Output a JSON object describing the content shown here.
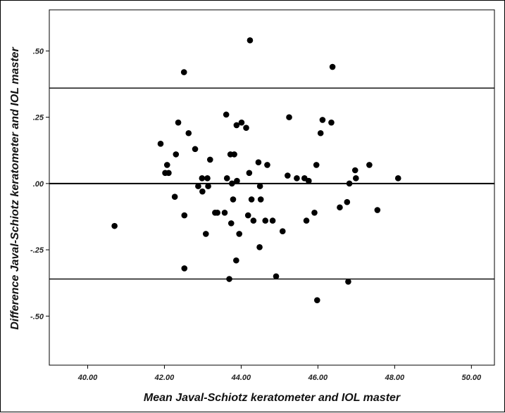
{
  "chart_data": {
    "type": "scatter",
    "title": "",
    "xlabel": "Mean Javal-Schiotz keratometer and IOL master",
    "ylabel": "Difference Javal-Schiotz keratometer and IOL master",
    "xlim": [
      39.0,
      50.6
    ],
    "ylim": [
      -0.685,
      0.655
    ],
    "x_ticks": [
      {
        "value": 40,
        "label": "40.00"
      },
      {
        "value": 42,
        "label": "42.00"
      },
      {
        "value": 44,
        "label": "44.00"
      },
      {
        "value": 46,
        "label": "46.00"
      },
      {
        "value": 48,
        "label": "48.00"
      },
      {
        "value": 50,
        "label": "50.00"
      }
    ],
    "y_ticks": [
      {
        "value": 0.5,
        "label": ".50"
      },
      {
        "value": 0.25,
        "label": ".25"
      },
      {
        "value": 0.0,
        "label": ".00"
      },
      {
        "value": -0.25,
        "label": "-.25"
      },
      {
        "value": -0.5,
        "label": "-.50"
      }
    ],
    "reference_lines": [
      {
        "kind": "upper-limit",
        "y": 0.36
      },
      {
        "kind": "mean-difference",
        "y": 0.0
      },
      {
        "kind": "lower-limit",
        "y": -0.36
      }
    ],
    "grid": false,
    "legend": "none",
    "colors": {
      "points": "#000000",
      "lines": "#000000",
      "frame": "#000000"
    },
    "points": [
      [
        40.7,
        -0.16
      ],
      [
        41.9,
        0.15
      ],
      [
        42.02,
        0.04
      ],
      [
        42.07,
        0.07
      ],
      [
        42.11,
        0.04
      ],
      [
        42.27,
        -0.05
      ],
      [
        42.3,
        0.11
      ],
      [
        42.36,
        0.23
      ],
      [
        42.52,
        -0.12
      ],
      [
        42.51,
        0.42
      ],
      [
        42.52,
        -0.32
      ],
      [
        42.63,
        0.19
      ],
      [
        42.8,
        0.13
      ],
      [
        42.88,
        -0.01
      ],
      [
        42.98,
        0.02
      ],
      [
        42.99,
        -0.03
      ],
      [
        43.08,
        -0.19
      ],
      [
        43.12,
        0.02
      ],
      [
        43.14,
        -0.01
      ],
      [
        43.19,
        0.09
      ],
      [
        43.32,
        -0.11
      ],
      [
        43.38,
        -0.11
      ],
      [
        43.57,
        -0.11
      ],
      [
        43.61,
        0.26
      ],
      [
        43.63,
        0.02
      ],
      [
        43.69,
        -0.36
      ],
      [
        43.72,
        0.11
      ],
      [
        43.74,
        -0.15
      ],
      [
        43.76,
        0.0
      ],
      [
        43.79,
        -0.06
      ],
      [
        43.82,
        0.11
      ],
      [
        43.88,
        0.22
      ],
      [
        43.87,
        -0.29
      ],
      [
        43.89,
        0.01
      ],
      [
        43.95,
        -0.19
      ],
      [
        44.01,
        0.23
      ],
      [
        44.13,
        0.21
      ],
      [
        44.18,
        -0.12
      ],
      [
        44.21,
        0.04
      ],
      [
        44.23,
        0.54
      ],
      [
        44.27,
        -0.06
      ],
      [
        44.32,
        -0.14
      ],
      [
        44.45,
        0.08
      ],
      [
        44.48,
        -0.24
      ],
      [
        44.49,
        -0.01
      ],
      [
        44.51,
        -0.06
      ],
      [
        44.63,
        -0.14
      ],
      [
        44.68,
        0.07
      ],
      [
        44.82,
        -0.14
      ],
      [
        44.91,
        -0.35
      ],
      [
        45.08,
        -0.18
      ],
      [
        45.21,
        0.03
      ],
      [
        45.25,
        0.25
      ],
      [
        45.45,
        0.02
      ],
      [
        45.65,
        0.02
      ],
      [
        45.7,
        -0.14
      ],
      [
        45.76,
        0.01
      ],
      [
        45.91,
        -0.11
      ],
      [
        45.96,
        0.07
      ],
      [
        45.98,
        -0.44
      ],
      [
        46.07,
        0.19
      ],
      [
        46.12,
        0.24
      ],
      [
        46.35,
        0.23
      ],
      [
        46.38,
        0.44
      ],
      [
        46.57,
        -0.09
      ],
      [
        46.76,
        -0.07
      ],
      [
        46.82,
        0.0
      ],
      [
        46.79,
        -0.37
      ],
      [
        46.97,
        0.05
      ],
      [
        46.99,
        0.02
      ],
      [
        47.34,
        0.07
      ],
      [
        47.55,
        -0.1
      ],
      [
        48.09,
        0.02
      ]
    ]
  }
}
